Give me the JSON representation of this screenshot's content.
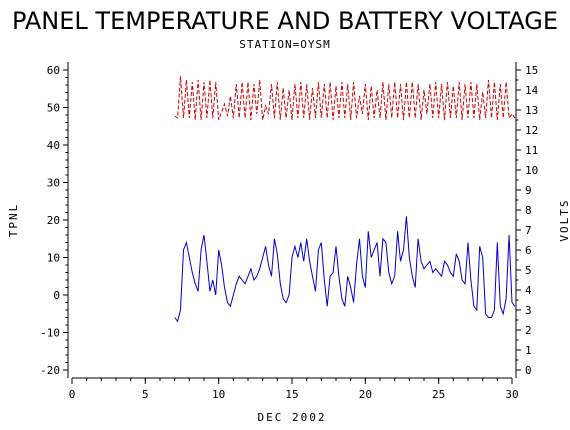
{
  "chart_data": {
    "type": "line",
    "title": "PANEL TEMPERATURE AND BATTERY VOLTAGE",
    "subtitle": "STATION=OYSM",
    "xlabel": "DEC 2002",
    "ylabel_left": "TPNL",
    "ylabel_right": "VOLTS",
    "xlim": [
      0,
      30
    ],
    "ylim_left": [
      -20,
      60
    ],
    "ylim_right": [
      0,
      15
    ],
    "x_ticks": [
      0,
      5,
      10,
      15,
      20,
      25,
      30
    ],
    "y_left_ticks": [
      -20,
      -10,
      0,
      10,
      20,
      30,
      40,
      50,
      60
    ],
    "y_right_ticks": [
      0,
      1,
      2,
      3,
      4,
      5,
      6,
      7,
      8,
      9,
      10,
      11,
      12,
      13,
      14,
      15
    ],
    "grid": false,
    "series": [
      {
        "axis": "left",
        "color": "#0000cc",
        "style": "solid",
        "points": [
          [
            7.0,
            -6
          ],
          [
            7.2,
            -7
          ],
          [
            7.4,
            -4
          ],
          [
            7.6,
            12
          ],
          [
            7.8,
            14
          ],
          [
            8.0,
            10
          ],
          [
            8.2,
            6
          ],
          [
            8.4,
            3
          ],
          [
            8.6,
            1
          ],
          [
            8.8,
            12
          ],
          [
            9.0,
            16
          ],
          [
            9.2,
            9
          ],
          [
            9.4,
            1
          ],
          [
            9.6,
            4
          ],
          [
            9.8,
            0
          ],
          [
            10.0,
            12
          ],
          [
            10.2,
            8
          ],
          [
            10.4,
            2
          ],
          [
            10.6,
            -2
          ],
          [
            10.8,
            -3
          ],
          [
            11.0,
            0
          ],
          [
            11.2,
            3
          ],
          [
            11.4,
            5
          ],
          [
            11.6,
            4
          ],
          [
            11.8,
            3
          ],
          [
            12.0,
            5
          ],
          [
            12.2,
            7
          ],
          [
            12.4,
            4
          ],
          [
            12.6,
            5
          ],
          [
            12.8,
            7
          ],
          [
            13.0,
            10
          ],
          [
            13.2,
            13
          ],
          [
            13.4,
            8
          ],
          [
            13.6,
            5
          ],
          [
            13.8,
            15
          ],
          [
            14.0,
            11
          ],
          [
            14.2,
            3
          ],
          [
            14.4,
            -1
          ],
          [
            14.6,
            -2
          ],
          [
            14.8,
            0
          ],
          [
            15.0,
            10
          ],
          [
            15.2,
            13
          ],
          [
            15.4,
            10
          ],
          [
            15.6,
            14
          ],
          [
            15.8,
            9
          ],
          [
            16.0,
            15
          ],
          [
            16.2,
            9
          ],
          [
            16.4,
            5
          ],
          [
            16.6,
            1
          ],
          [
            16.8,
            12
          ],
          [
            17.0,
            14
          ],
          [
            17.2,
            4
          ],
          [
            17.4,
            -3
          ],
          [
            17.6,
            5
          ],
          [
            17.8,
            6
          ],
          [
            18.0,
            13
          ],
          [
            18.2,
            5
          ],
          [
            18.4,
            -1
          ],
          [
            18.6,
            -3
          ],
          [
            18.8,
            5
          ],
          [
            19.0,
            2
          ],
          [
            19.2,
            -2
          ],
          [
            19.4,
            8
          ],
          [
            19.6,
            15
          ],
          [
            19.8,
            5
          ],
          [
            20.0,
            2
          ],
          [
            20.2,
            17
          ],
          [
            20.4,
            10
          ],
          [
            20.6,
            12
          ],
          [
            20.8,
            14
          ],
          [
            21.0,
            5
          ],
          [
            21.2,
            15
          ],
          [
            21.4,
            14
          ],
          [
            21.6,
            6
          ],
          [
            21.8,
            3
          ],
          [
            22.0,
            5
          ],
          [
            22.2,
            17
          ],
          [
            22.4,
            9
          ],
          [
            22.6,
            12
          ],
          [
            22.8,
            21
          ],
          [
            23.0,
            10
          ],
          [
            23.2,
            5
          ],
          [
            23.4,
            2
          ],
          [
            23.6,
            15
          ],
          [
            23.8,
            9
          ],
          [
            24.0,
            7
          ],
          [
            24.2,
            8
          ],
          [
            24.4,
            9
          ],
          [
            24.6,
            6
          ],
          [
            24.8,
            7
          ],
          [
            25.0,
            6
          ],
          [
            25.2,
            5
          ],
          [
            25.4,
            9
          ],
          [
            25.6,
            8
          ],
          [
            25.8,
            6
          ],
          [
            26.0,
            5
          ],
          [
            26.2,
            11
          ],
          [
            26.4,
            9
          ],
          [
            26.6,
            4
          ],
          [
            26.8,
            3
          ],
          [
            27.0,
            14
          ],
          [
            27.2,
            4
          ],
          [
            27.4,
            -3
          ],
          [
            27.6,
            -4
          ],
          [
            27.8,
            13
          ],
          [
            28.0,
            10
          ],
          [
            28.2,
            -5
          ],
          [
            28.4,
            -6
          ],
          [
            28.6,
            -6
          ],
          [
            28.8,
            -4
          ],
          [
            29.0,
            14
          ],
          [
            29.2,
            -3
          ],
          [
            29.4,
            -5
          ],
          [
            29.6,
            -1
          ],
          [
            29.8,
            16
          ],
          [
            30.0,
            -2
          ],
          [
            30.2,
            -3
          ]
        ]
      },
      {
        "axis": "right",
        "color": "#cc0000",
        "style": "dashed",
        "points": [
          [
            7.0,
            12.7
          ],
          [
            7.2,
            12.6
          ],
          [
            7.4,
            14.7
          ],
          [
            7.6,
            12.6
          ],
          [
            7.8,
            14.5
          ],
          [
            8.0,
            12.6
          ],
          [
            8.2,
            14.4
          ],
          [
            8.4,
            12.5
          ],
          [
            8.6,
            14.5
          ],
          [
            8.8,
            12.5
          ],
          [
            9.0,
            14.4
          ],
          [
            9.2,
            12.6
          ],
          [
            9.4,
            14.5
          ],
          [
            9.6,
            12.6
          ],
          [
            9.8,
            14.4
          ],
          [
            10.0,
            12.5
          ],
          [
            10.2,
            12.9
          ],
          [
            10.4,
            13.3
          ],
          [
            10.6,
            12.7
          ],
          [
            10.8,
            13.7
          ],
          [
            11.0,
            12.6
          ],
          [
            11.2,
            14.3
          ],
          [
            11.4,
            12.6
          ],
          [
            11.6,
            14.4
          ],
          [
            11.8,
            12.6
          ],
          [
            12.0,
            14.4
          ],
          [
            12.2,
            12.5
          ],
          [
            12.4,
            14.3
          ],
          [
            12.6,
            12.8
          ],
          [
            12.8,
            14.5
          ],
          [
            13.0,
            12.5
          ],
          [
            13.2,
            13.2
          ],
          [
            13.4,
            12.8
          ],
          [
            13.6,
            14.3
          ],
          [
            13.8,
            12.6
          ],
          [
            14.0,
            14.4
          ],
          [
            14.2,
            12.5
          ],
          [
            14.4,
            14.1
          ],
          [
            14.6,
            12.6
          ],
          [
            14.8,
            14.0
          ],
          [
            15.0,
            12.5
          ],
          [
            15.2,
            14.3
          ],
          [
            15.4,
            12.6
          ],
          [
            15.6,
            14.4
          ],
          [
            15.8,
            12.6
          ],
          [
            16.0,
            14.3
          ],
          [
            16.2,
            12.5
          ],
          [
            16.4,
            14.1
          ],
          [
            16.6,
            12.6
          ],
          [
            16.8,
            14.4
          ],
          [
            17.0,
            12.6
          ],
          [
            17.2,
            14.3
          ],
          [
            17.4,
            12.6
          ],
          [
            17.6,
            14.4
          ],
          [
            17.8,
            12.5
          ],
          [
            18.0,
            14.2
          ],
          [
            18.2,
            12.6
          ],
          [
            18.4,
            14.4
          ],
          [
            18.6,
            12.6
          ],
          [
            18.8,
            14.3
          ],
          [
            19.0,
            12.5
          ],
          [
            19.2,
            14.4
          ],
          [
            19.4,
            12.6
          ],
          [
            19.6,
            13.7
          ],
          [
            19.8,
            12.8
          ],
          [
            20.0,
            14.3
          ],
          [
            20.2,
            12.5
          ],
          [
            20.4,
            14.2
          ],
          [
            20.6,
            12.6
          ],
          [
            20.8,
            14.0
          ],
          [
            21.0,
            12.6
          ],
          [
            21.2,
            14.4
          ],
          [
            21.4,
            12.5
          ],
          [
            21.6,
            14.3
          ],
          [
            21.8,
            12.6
          ],
          [
            22.0,
            14.4
          ],
          [
            22.2,
            12.6
          ],
          [
            22.4,
            14.3
          ],
          [
            22.6,
            12.5
          ],
          [
            22.8,
            14.4
          ],
          [
            23.0,
            12.6
          ],
          [
            23.2,
            14.4
          ],
          [
            23.4,
            12.6
          ],
          [
            23.6,
            14.3
          ],
          [
            23.8,
            12.5
          ],
          [
            24.0,
            14.0
          ],
          [
            24.2,
            12.8
          ],
          [
            24.4,
            14.3
          ],
          [
            24.6,
            12.6
          ],
          [
            24.8,
            14.4
          ],
          [
            25.0,
            12.6
          ],
          [
            25.2,
            14.3
          ],
          [
            25.4,
            12.5
          ],
          [
            25.6,
            14.4
          ],
          [
            25.8,
            12.6
          ],
          [
            26.0,
            14.2
          ],
          [
            26.2,
            12.6
          ],
          [
            26.4,
            14.4
          ],
          [
            26.6,
            12.5
          ],
          [
            26.8,
            14.3
          ],
          [
            27.0,
            12.6
          ],
          [
            27.2,
            14.4
          ],
          [
            27.4,
            12.6
          ],
          [
            27.6,
            14.3
          ],
          [
            27.8,
            12.5
          ],
          [
            28.0,
            13.9
          ],
          [
            28.2,
            12.6
          ],
          [
            28.4,
            14.5
          ],
          [
            28.6,
            12.6
          ],
          [
            28.8,
            14.4
          ],
          [
            29.0,
            12.5
          ],
          [
            29.2,
            14.3
          ],
          [
            29.4,
            12.6
          ],
          [
            29.6,
            14.4
          ],
          [
            29.8,
            12.6
          ],
          [
            30.0,
            12.8
          ],
          [
            30.2,
            12.6
          ]
        ]
      }
    ]
  }
}
